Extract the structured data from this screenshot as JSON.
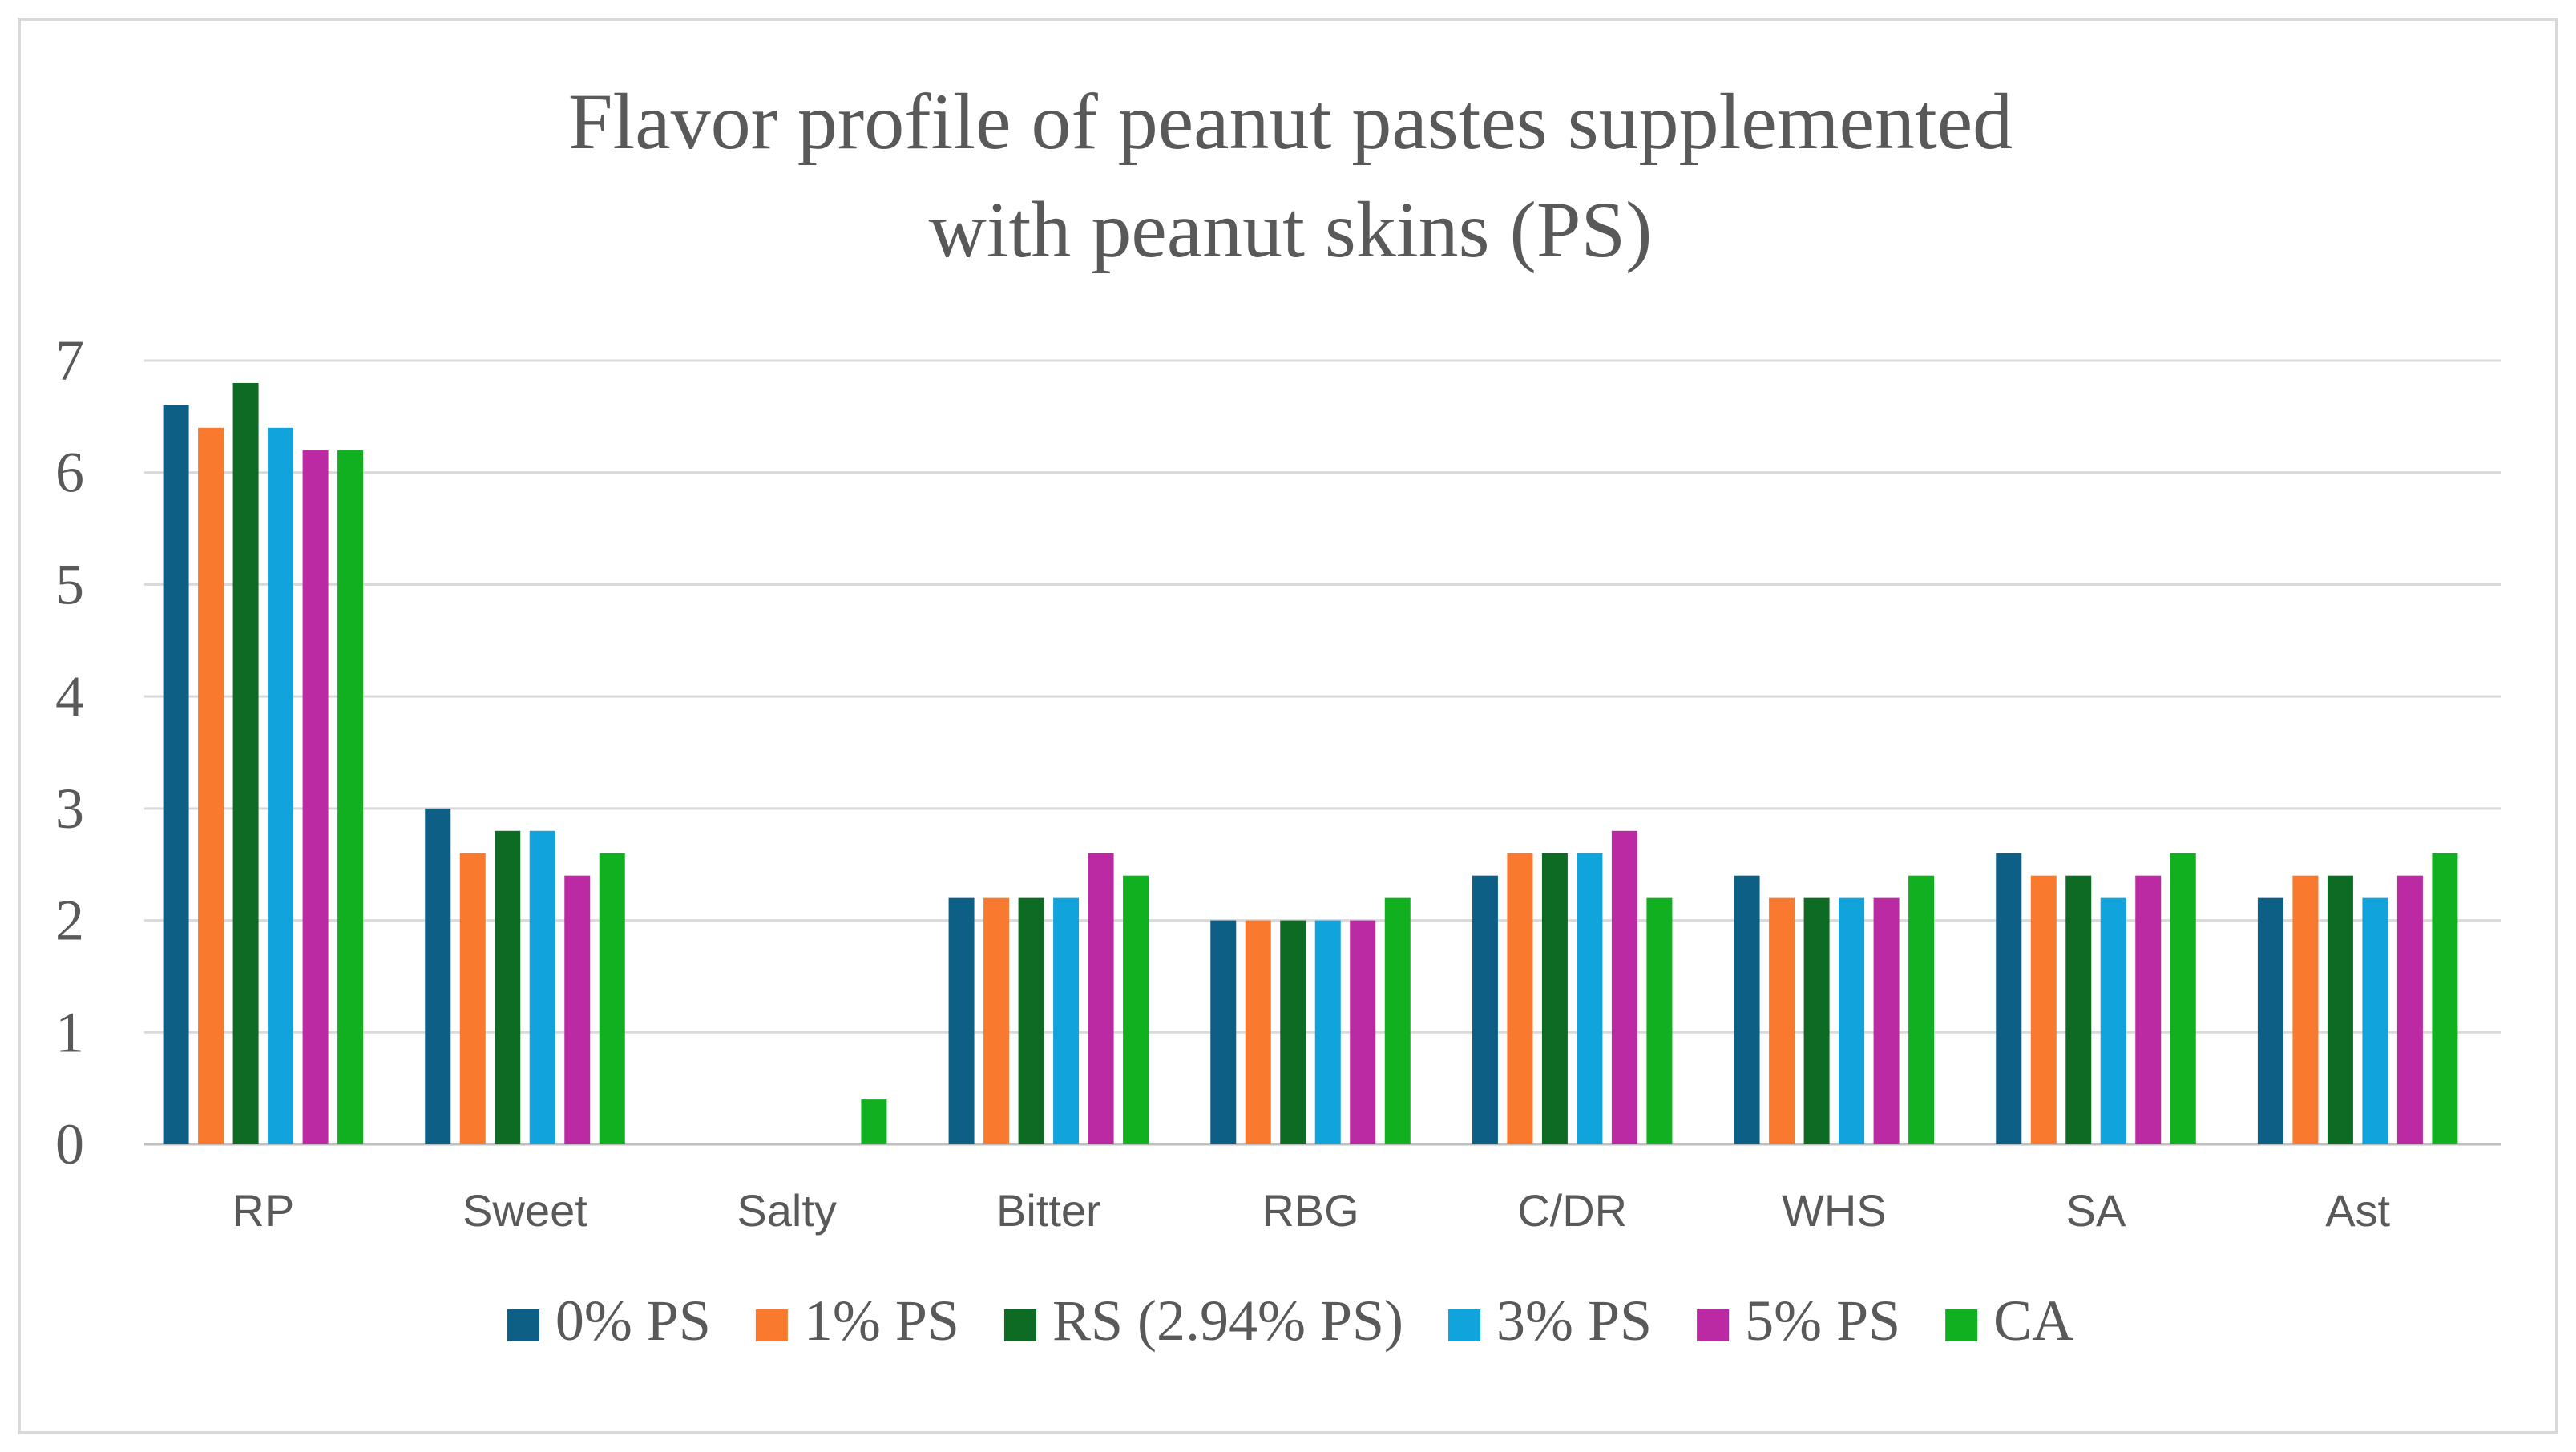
{
  "chart_data": {
    "type": "bar",
    "title_lines": [
      "Flavor profile of peanut pastes supplemented",
      "with peanut skins (PS)"
    ],
    "xlabel": "",
    "ylabel": "",
    "ylim": [
      0,
      7
    ],
    "yticks": [
      "0",
      "1",
      "2",
      "3",
      "4",
      "5",
      "6",
      "7"
    ],
    "grid": true,
    "legend_position": "bottom",
    "categories": [
      "RP",
      "Sweet",
      "Salty",
      "Bitter",
      "RBG",
      "C/DR",
      "WHS",
      "SA",
      "Ast"
    ],
    "series": [
      {
        "name": "0% PS",
        "color": "#0e5f86",
        "values": [
          6.6,
          3.0,
          0,
          2.2,
          2.0,
          2.4,
          2.4,
          2.6,
          2.2
        ]
      },
      {
        "name": "1% PS",
        "color": "#f97a2e",
        "values": [
          6.4,
          2.6,
          0,
          2.2,
          2.0,
          2.6,
          2.2,
          2.4,
          2.4
        ]
      },
      {
        "name": "RS (2.94% PS)",
        "color": "#0d6b24",
        "values": [
          6.8,
          2.8,
          0,
          2.2,
          2.0,
          2.6,
          2.2,
          2.4,
          2.4
        ]
      },
      {
        "name": "3% PS",
        "color": "#10a3dc",
        "values": [
          6.4,
          2.8,
          0,
          2.2,
          2.0,
          2.6,
          2.2,
          2.2,
          2.2
        ]
      },
      {
        "name": "5% PS",
        "color": "#bb2aa2",
        "values": [
          6.2,
          2.4,
          0,
          2.6,
          2.0,
          2.8,
          2.2,
          2.4,
          2.4
        ]
      },
      {
        "name": "CA",
        "color": "#10b020",
        "values": [
          6.2,
          2.6,
          0.4,
          2.4,
          2.2,
          2.2,
          2.4,
          2.6,
          2.6
        ]
      }
    ]
  }
}
